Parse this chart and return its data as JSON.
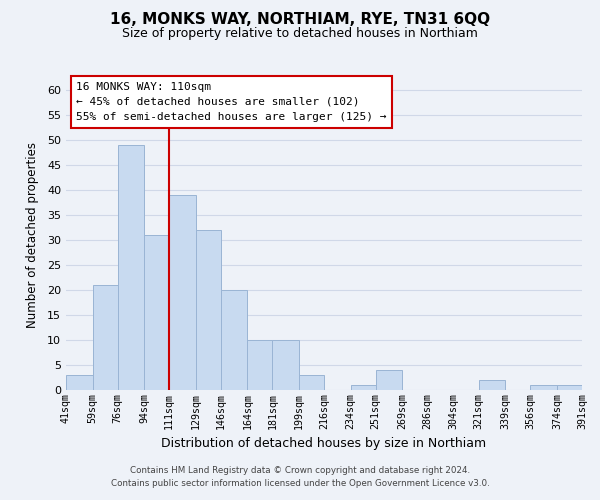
{
  "title": "16, MONKS WAY, NORTHIAM, RYE, TN31 6QQ",
  "subtitle": "Size of property relative to detached houses in Northiam",
  "xlabel": "Distribution of detached houses by size in Northiam",
  "ylabel": "Number of detached properties",
  "footer_line1": "Contains HM Land Registry data © Crown copyright and database right 2024.",
  "footer_line2": "Contains public sector information licensed under the Open Government Licence v3.0.",
  "bar_edges": [
    41,
    59,
    76,
    94,
    111,
    129,
    146,
    164,
    181,
    199,
    216,
    234,
    251,
    269,
    286,
    304,
    321,
    339,
    356,
    374,
    391
  ],
  "bar_heights": [
    3,
    21,
    49,
    31,
    39,
    32,
    20,
    10,
    10,
    3,
    0,
    1,
    4,
    0,
    0,
    0,
    2,
    0,
    1,
    1
  ],
  "bar_color": "#c8daf0",
  "bar_edge_color": "#9ab4d4",
  "grid_color": "#d0d8e8",
  "vline_x": 111,
  "vline_color": "#cc0000",
  "annotation_title": "16 MONKS WAY: 110sqm",
  "annotation_line1": "← 45% of detached houses are smaller (102)",
  "annotation_line2": "55% of semi-detached houses are larger (125) →",
  "annotation_box_color": "white",
  "annotation_box_edgecolor": "#cc0000",
  "ylim": [
    0,
    62
  ],
  "yticks": [
    0,
    5,
    10,
    15,
    20,
    25,
    30,
    35,
    40,
    45,
    50,
    55,
    60
  ],
  "tick_labels": [
    "41sqm",
    "59sqm",
    "76sqm",
    "94sqm",
    "111sqm",
    "129sqm",
    "146sqm",
    "164sqm",
    "181sqm",
    "199sqm",
    "216sqm",
    "234sqm",
    "251sqm",
    "269sqm",
    "286sqm",
    "304sqm",
    "321sqm",
    "339sqm",
    "356sqm",
    "374sqm",
    "391sqm"
  ],
  "background_color": "#eef2f8",
  "title_fontsize": 11,
  "subtitle_fontsize": 9,
  "ylabel_fontsize": 8.5,
  "xlabel_fontsize": 9
}
